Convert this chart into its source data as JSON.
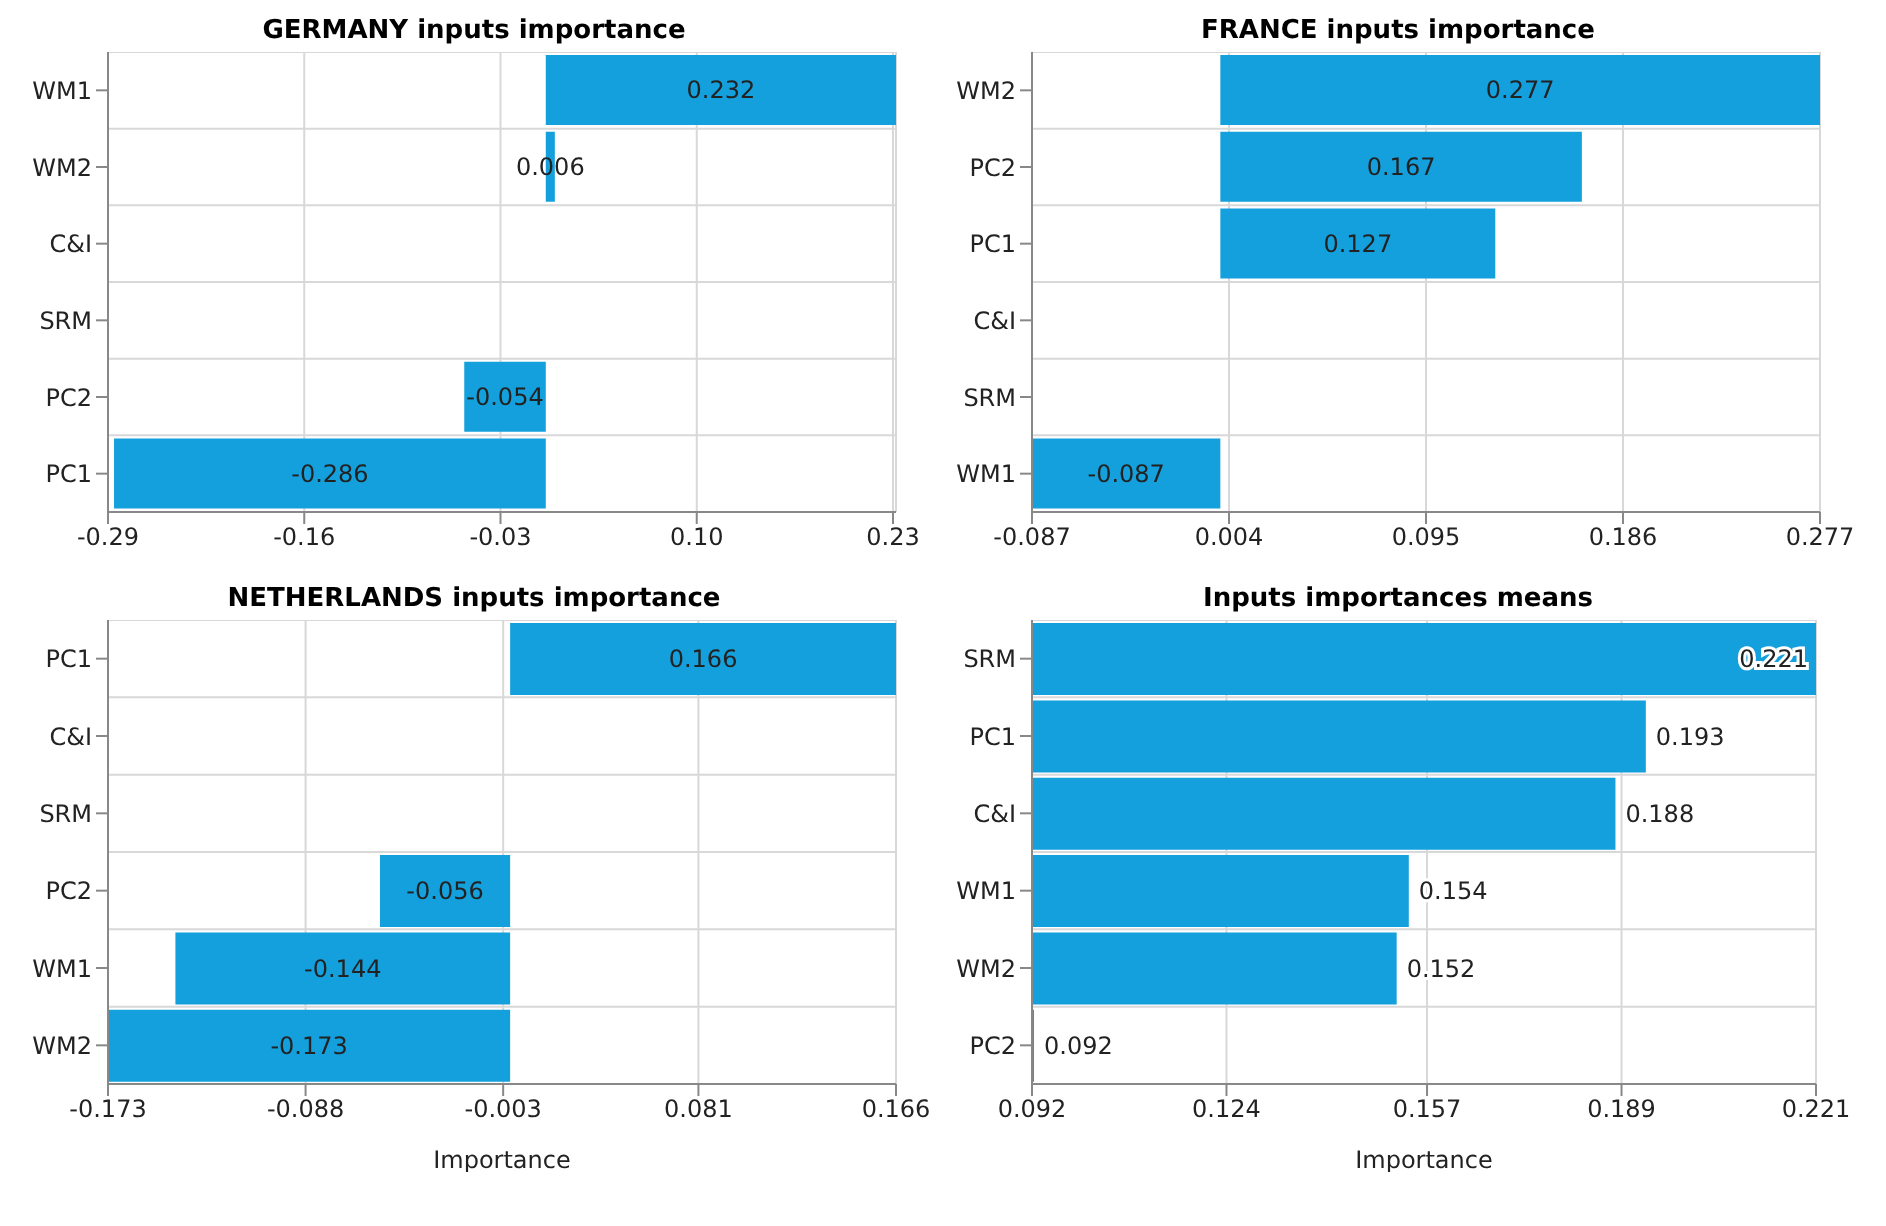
{
  "chart_data": [
    {
      "type": "bar",
      "orientation": "horizontal",
      "title": "GERMANY inputs importance",
      "categories": [
        "WM1",
        "WM2",
        "C&I",
        "SRM",
        "PC2",
        "PC1"
      ],
      "values": [
        0.232,
        0.006,
        null,
        null,
        -0.054,
        -0.286
      ],
      "color": "#14a0dc",
      "xlim": [
        -0.29,
        0.232
      ],
      "xticks": [
        -0.29,
        -0.16,
        -0.03,
        {
          "value": 0.1,
          "label": "0.10"
        },
        0.23
      ],
      "grid": true,
      "data_labels": true
    },
    {
      "type": "bar",
      "orientation": "horizontal",
      "title": "FRANCE inputs importance",
      "categories": [
        "WM2",
        "PC2",
        "PC1",
        "C&I",
        "SRM",
        "WM1"
      ],
      "values": [
        0.277,
        0.167,
        0.127,
        null,
        null,
        -0.087
      ],
      "color": "#14a0dc",
      "xlim": [
        -0.087,
        0.277
      ],
      "xticks": [
        -0.087,
        0.004,
        0.095,
        0.186,
        0.277
      ],
      "grid": true,
      "data_labels": true
    },
    {
      "type": "bar",
      "orientation": "horizontal",
      "title": "NETHERLANDS inputs importance",
      "xlabel": "Importance",
      "categories": [
        "PC1",
        "C&I",
        "SRM",
        "PC2",
        "WM1",
        "WM2"
      ],
      "values": [
        0.166,
        null,
        null,
        -0.056,
        -0.144,
        -0.173
      ],
      "color": "#14a0dc",
      "xlim": [
        -0.173,
        0.166
      ],
      "xticks": [
        -0.173,
        -0.088,
        -0.003,
        0.081,
        0.166
      ],
      "grid": true,
      "data_labels": true
    },
    {
      "type": "bar",
      "orientation": "horizontal",
      "title": "Inputs importances means",
      "xlabel": "Importance",
      "categories": [
        "SRM",
        "PC1",
        "C&I",
        "WM1",
        "WM2",
        "PC2"
      ],
      "values": [
        0.221,
        0.193,
        0.188,
        0.154,
        0.152,
        0.092
      ],
      "color": "#14a0dc",
      "xlim": [
        0.092,
        0.221
      ],
      "xticks": [
        0.092,
        0.124,
        0.157,
        0.189,
        0.221
      ],
      "grid": true,
      "data_labels": true
    }
  ]
}
